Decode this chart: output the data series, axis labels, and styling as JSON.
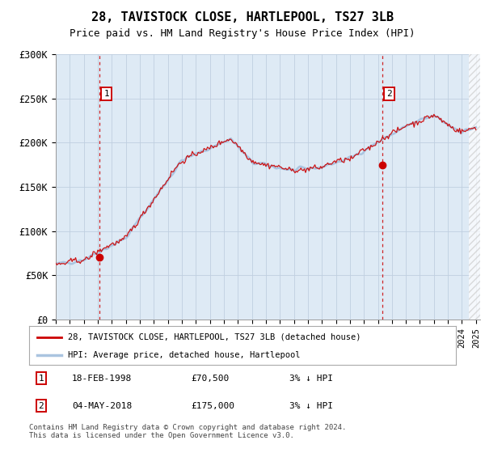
{
  "title": "28, TAVISTOCK CLOSE, HARTLEPOOL, TS27 3LB",
  "subtitle": "Price paid vs. HM Land Registry's House Price Index (HPI)",
  "legend_line1": "28, TAVISTOCK CLOSE, HARTLEPOOL, TS27 3LB (detached house)",
  "legend_line2": "HPI: Average price, detached house, Hartlepool",
  "annotation1_label": "1",
  "annotation1_date": "18-FEB-1998",
  "annotation1_price": "£70,500",
  "annotation1_hpi": "3% ↓ HPI",
  "annotation2_label": "2",
  "annotation2_date": "04-MAY-2018",
  "annotation2_price": "£175,000",
  "annotation2_hpi": "3% ↓ HPI",
  "copyright": "Contains HM Land Registry data © Crown copyright and database right 2024.\nThis data is licensed under the Open Government Licence v3.0.",
  "sale1_year": 1998.12,
  "sale1_price": 70500,
  "sale2_year": 2018.34,
  "sale2_price": 175000,
  "hpi_color": "#aac4e0",
  "price_color": "#cc0000",
  "bg_color": "#deeaf5",
  "grid_color": "#c0cfe0",
  "ylim": [
    0,
    300000
  ],
  "yticks": [
    0,
    50000,
    100000,
    150000,
    200000,
    250000,
    300000
  ],
  "ytick_labels": [
    "£0",
    "£50K",
    "£100K",
    "£150K",
    "£200K",
    "£250K",
    "£300K"
  ],
  "xstart": 1995,
  "xend": 2025
}
